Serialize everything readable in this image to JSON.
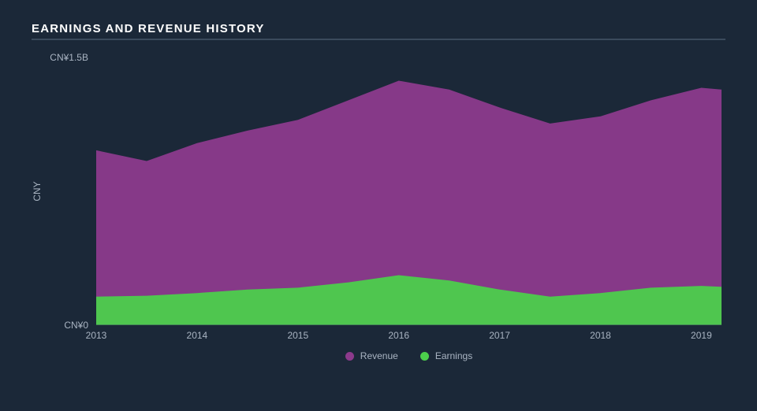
{
  "title": "EARNINGS AND REVENUE HISTORY",
  "chart": {
    "type": "area",
    "background_color": "#1b2838",
    "axis_line_color": "#3a4a5c",
    "text_color": "#a9b4c2",
    "title_color": "#ffffff",
    "title_fontsize": 15,
    "label_fontsize": 12,
    "y_axis": {
      "title": "CNY",
      "min": 0,
      "max": 1500000000,
      "ticks": [
        {
          "value": 0,
          "label": "CN¥0"
        },
        {
          "value": 1500000000,
          "label": "CN¥1.5B"
        }
      ]
    },
    "x_axis": {
      "min": 2013,
      "max": 2019.2,
      "ticks": [
        {
          "value": 2013,
          "label": "2013"
        },
        {
          "value": 2014,
          "label": "2014"
        },
        {
          "value": 2015,
          "label": "2015"
        },
        {
          "value": 2016,
          "label": "2016"
        },
        {
          "value": 2017,
          "label": "2017"
        },
        {
          "value": 2018,
          "label": "2018"
        },
        {
          "value": 2019,
          "label": "2019"
        }
      ]
    },
    "series": [
      {
        "name": "Revenue",
        "color": "#8c3a8c",
        "fill_opacity": 0.95,
        "data": [
          {
            "x": 2013.0,
            "y": 980000000
          },
          {
            "x": 2013.5,
            "y": 920000000
          },
          {
            "x": 2014.0,
            "y": 1020000000
          },
          {
            "x": 2014.5,
            "y": 1090000000
          },
          {
            "x": 2015.0,
            "y": 1150000000
          },
          {
            "x": 2015.5,
            "y": 1260000000
          },
          {
            "x": 2016.0,
            "y": 1370000000
          },
          {
            "x": 2016.5,
            "y": 1320000000
          },
          {
            "x": 2017.0,
            "y": 1220000000
          },
          {
            "x": 2017.5,
            "y": 1130000000
          },
          {
            "x": 2018.0,
            "y": 1170000000
          },
          {
            "x": 2018.5,
            "y": 1260000000
          },
          {
            "x": 2019.0,
            "y": 1330000000
          },
          {
            "x": 2019.2,
            "y": 1320000000
          }
        ]
      },
      {
        "name": "Earnings",
        "color": "#4cce4c",
        "fill_opacity": 0.95,
        "data": [
          {
            "x": 2013.0,
            "y": 160000000
          },
          {
            "x": 2013.5,
            "y": 165000000
          },
          {
            "x": 2014.0,
            "y": 180000000
          },
          {
            "x": 2014.5,
            "y": 200000000
          },
          {
            "x": 2015.0,
            "y": 210000000
          },
          {
            "x": 2015.5,
            "y": 240000000
          },
          {
            "x": 2016.0,
            "y": 280000000
          },
          {
            "x": 2016.5,
            "y": 250000000
          },
          {
            "x": 2017.0,
            "y": 200000000
          },
          {
            "x": 2017.5,
            "y": 160000000
          },
          {
            "x": 2018.0,
            "y": 180000000
          },
          {
            "x": 2018.5,
            "y": 210000000
          },
          {
            "x": 2019.0,
            "y": 220000000
          },
          {
            "x": 2019.2,
            "y": 215000000
          }
        ]
      }
    ],
    "legend": {
      "position": "bottom",
      "items": [
        {
          "label": "Revenue",
          "color": "#8c3a8c"
        },
        {
          "label": "Earnings",
          "color": "#4cce4c"
        }
      ]
    }
  }
}
